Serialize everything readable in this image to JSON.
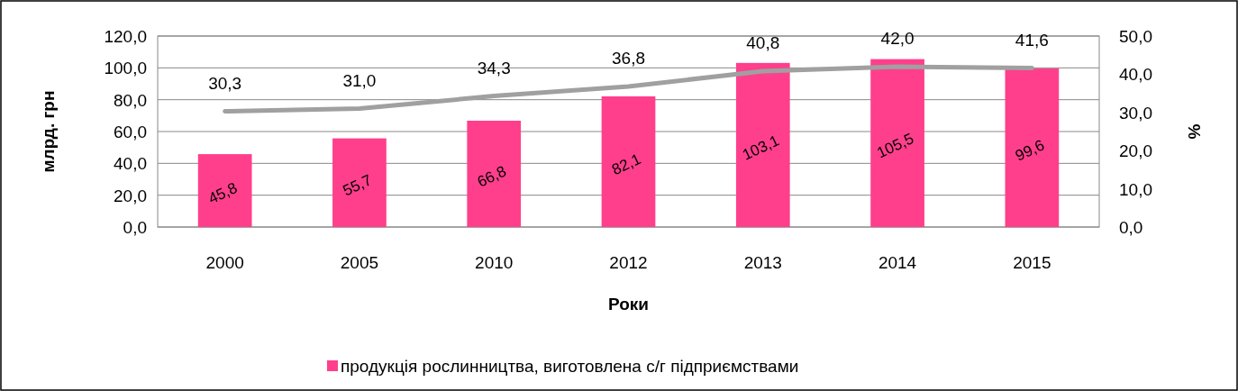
{
  "chart_data": {
    "type": "bar",
    "xlabel": "Роки",
    "ylabel": "млрд. грн",
    "y2label": "%",
    "categories": [
      "2000",
      "2005",
      "2010",
      "2012",
      "2013",
      "2014",
      "2015"
    ],
    "series": [
      {
        "name": "продукція рослинництва, виготовлена с/г підприємствами",
        "color": "#ff3f8c",
        "values": [
          45.8,
          55.7,
          66.8,
          82.1,
          103.1,
          105.5,
          99.6
        ],
        "value_labels": [
          "45,8",
          "55,7",
          "66,8",
          "82,1",
          "103,1",
          "105,5",
          "99,6"
        ]
      },
      {
        "type": "line",
        "axis": "y2",
        "color": "#a0a0a0",
        "values": [
          30.3,
          31.0,
          34.3,
          36.8,
          40.8,
          42.0,
          41.6
        ],
        "value_labels": [
          "30,3",
          "31,0",
          "34,3",
          "36,8",
          "40,8",
          "42,0",
          "41,6"
        ]
      }
    ],
    "ylim": [
      0,
      120
    ],
    "yticks": [
      {
        "value": 0,
        "label": "0,0"
      },
      {
        "value": 20,
        "label": "20,0"
      },
      {
        "value": 40,
        "label": "40,0"
      },
      {
        "value": 60,
        "label": "60,0"
      },
      {
        "value": 80,
        "label": "80,0"
      },
      {
        "value": 100,
        "label": "100,0"
      },
      {
        "value": 120,
        "label": "120,0"
      }
    ],
    "y2lim": [
      0,
      50
    ],
    "y2ticks": [
      {
        "value": 0,
        "label": "0,0"
      },
      {
        "value": 10,
        "label": "10,0"
      },
      {
        "value": 20,
        "label": "20,0"
      },
      {
        "value": 30,
        "label": "30,0"
      },
      {
        "value": 40,
        "label": "40,0"
      },
      {
        "value": 50,
        "label": "50,0"
      }
    ],
    "grid": "y",
    "legend": "bottom",
    "marker": "none",
    "line_style": "solid"
  }
}
